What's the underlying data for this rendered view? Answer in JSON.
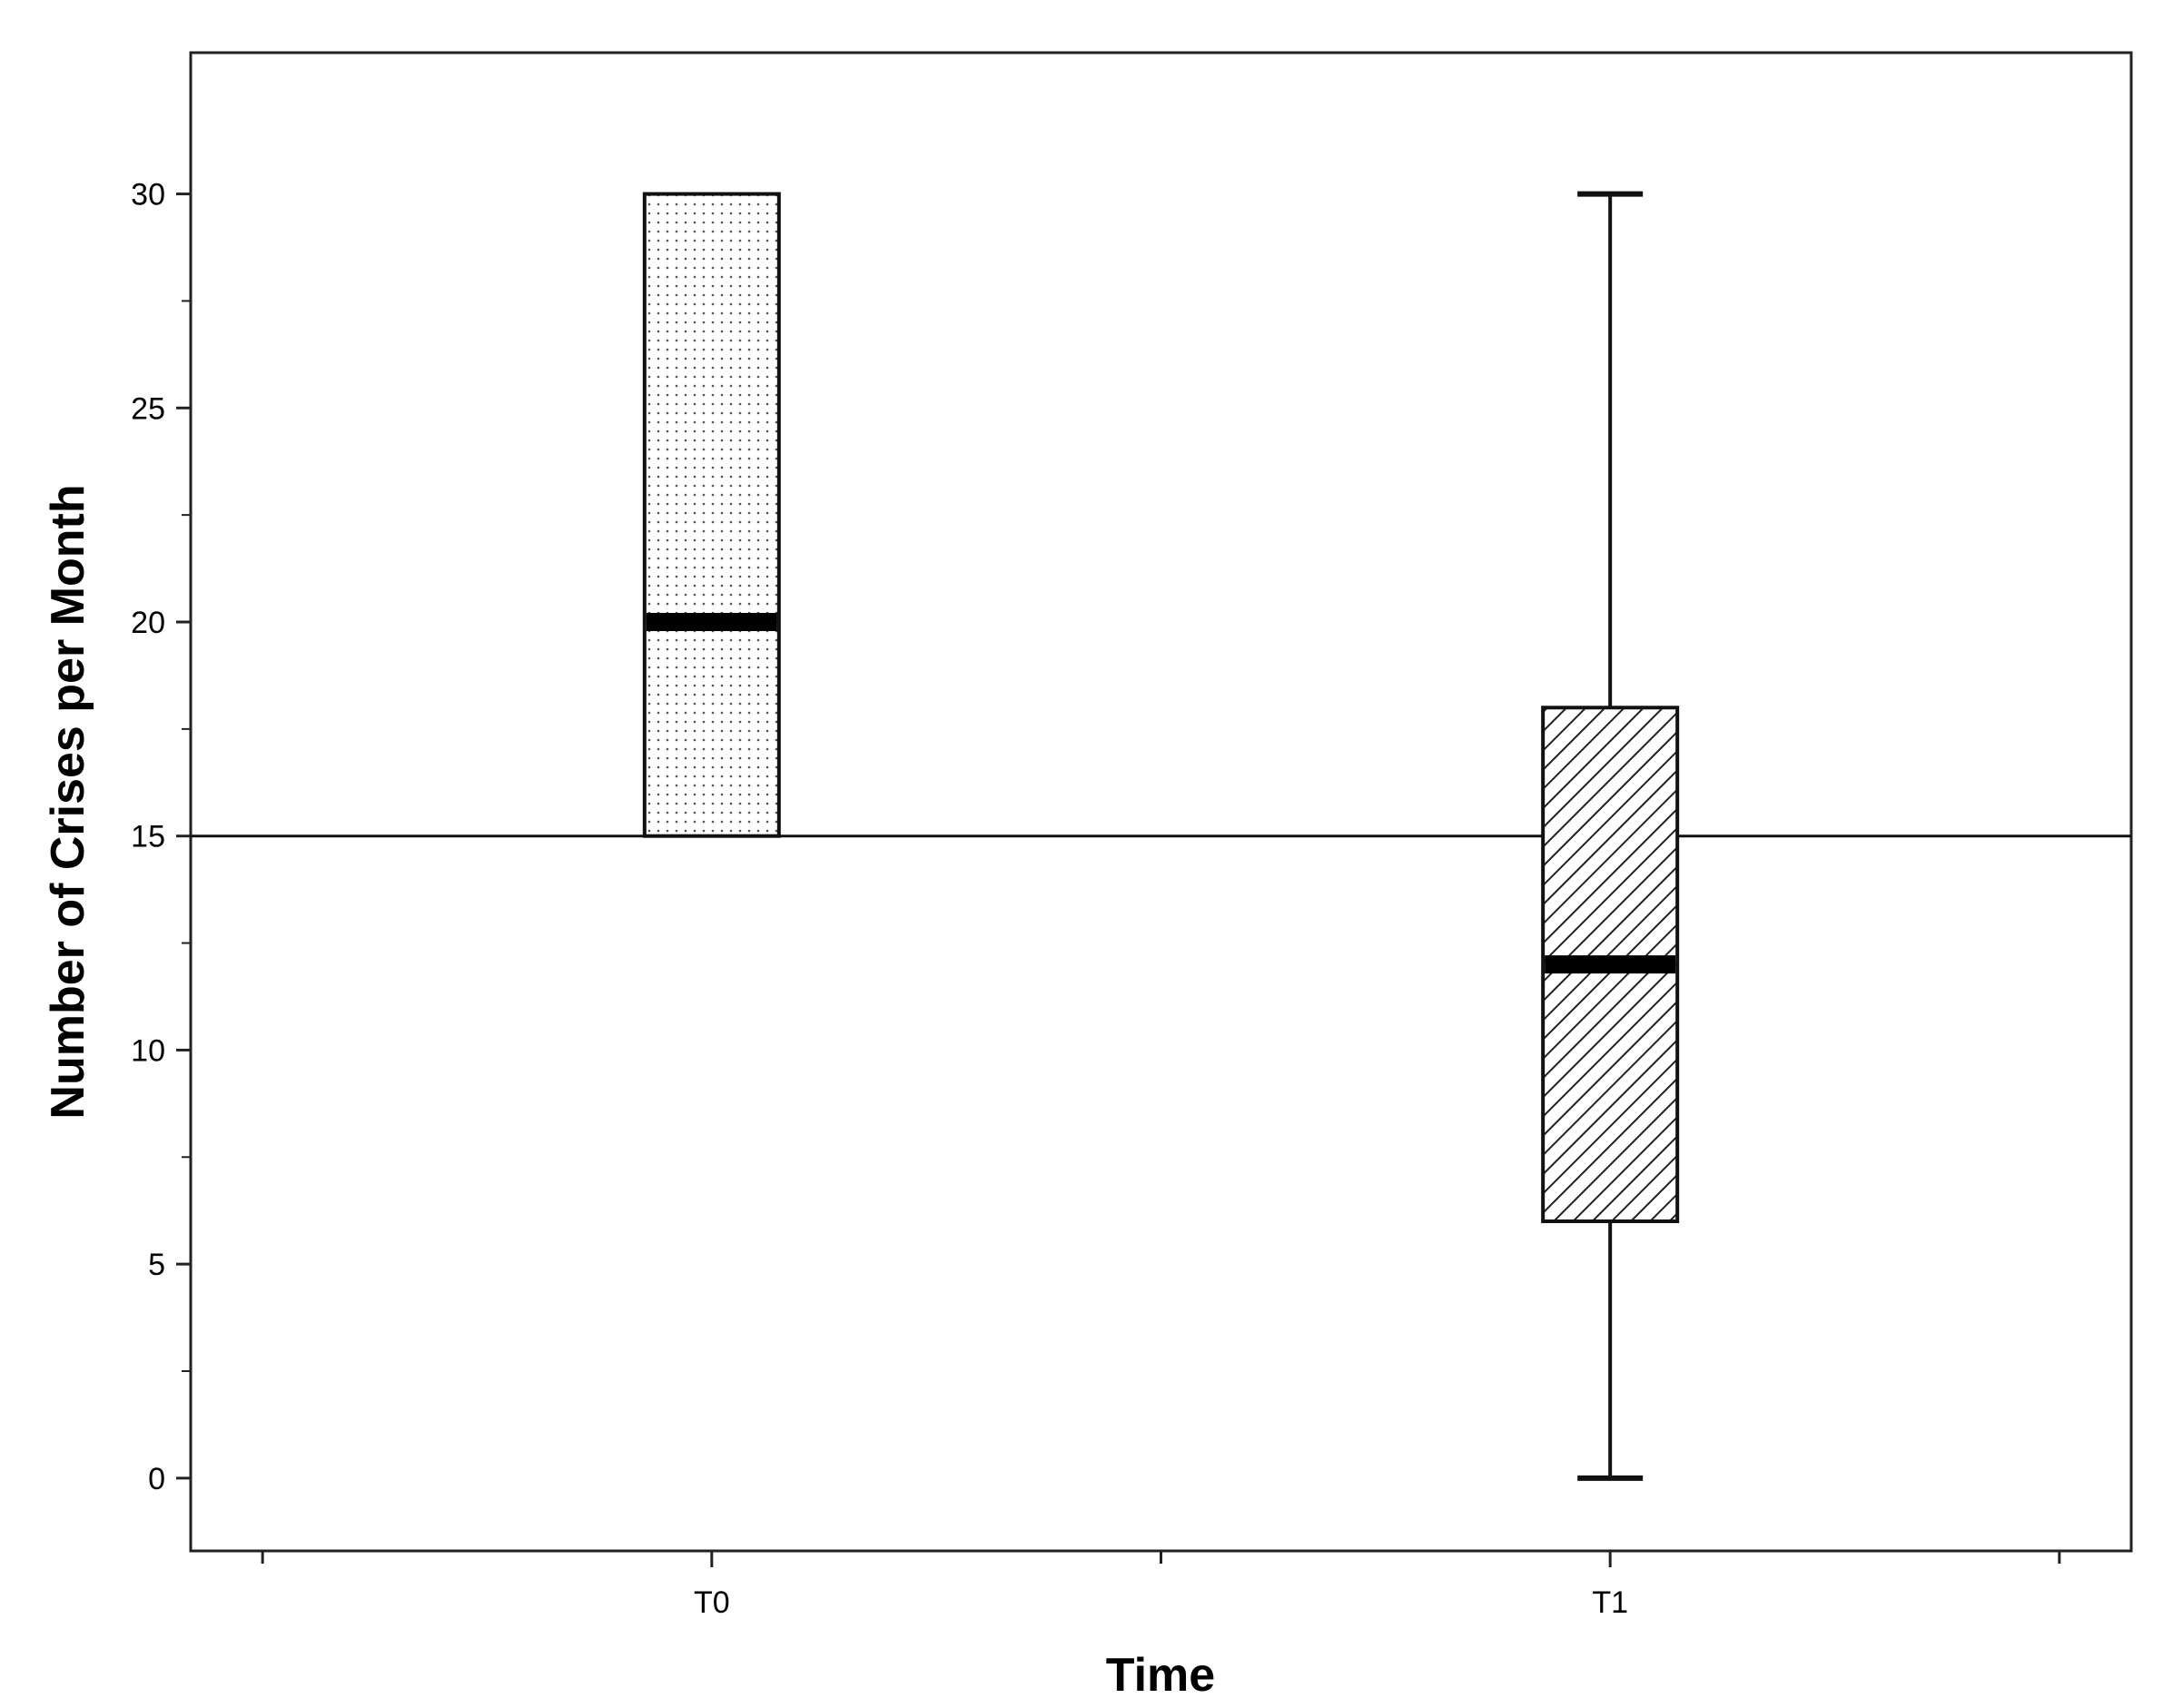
{
  "chart_data": {
    "type": "box",
    "title": "",
    "xlabel": "Time",
    "ylabel": "Number of Crises per Month",
    "categories": [
      "T0",
      "T1"
    ],
    "boxes": [
      {
        "category": "T0",
        "min": 15,
        "q1": 15,
        "median": 20,
        "q3": 30,
        "max": 30,
        "fill_pattern": "dots"
      },
      {
        "category": "T1",
        "min": 0,
        "q1": 6,
        "median": 12,
        "q3": 18,
        "max": 30,
        "fill_pattern": "diagonal-hatch"
      }
    ],
    "reference_line": {
      "y": 15
    },
    "ylim": [
      -1.7,
      33.3
    ],
    "yticks": [
      0,
      5,
      10,
      15,
      20,
      25,
      30
    ],
    "yticks_minor": [
      2.5,
      7.5,
      12.5,
      17.5,
      22.5,
      27.5
    ],
    "grid": false,
    "legend": "none"
  }
}
